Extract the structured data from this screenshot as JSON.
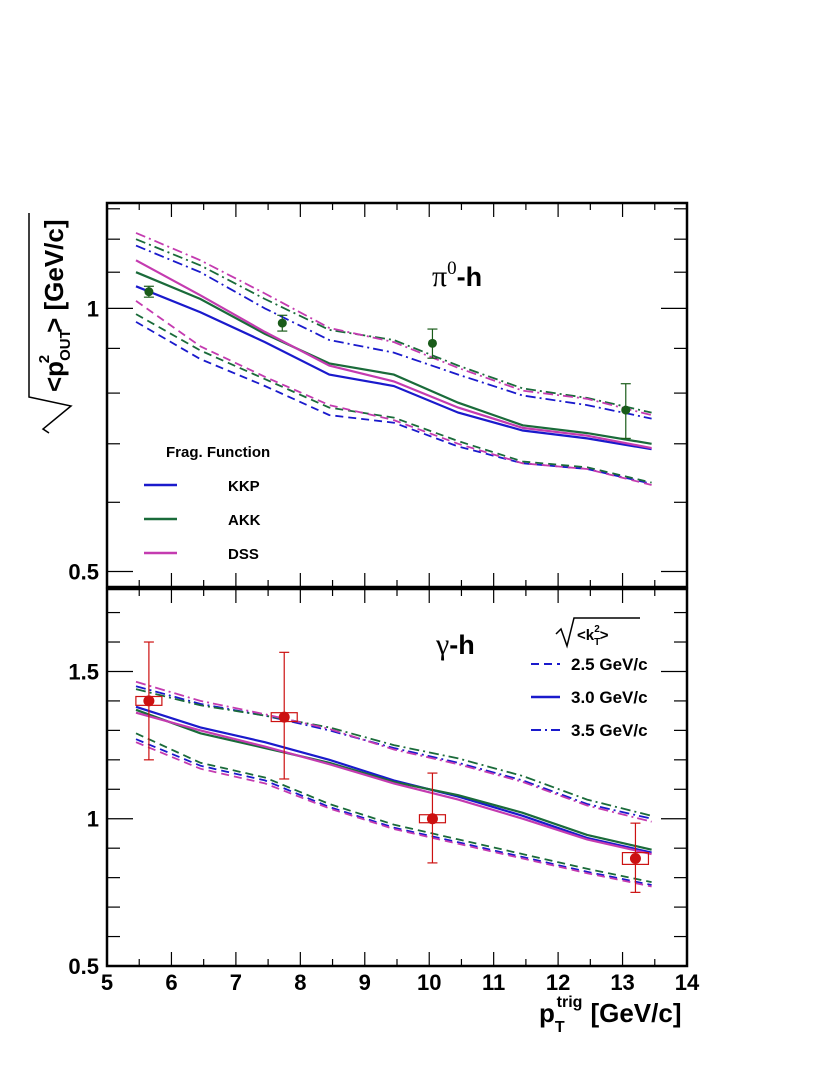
{
  "colors": {
    "KKP": "#1a1acc",
    "AKK": "#1a6b3a",
    "DSS": "#c43bb0",
    "data_top": "#1a5c1a",
    "data_bottom": "#cc1111"
  },
  "x_axis": {
    "title_main": "p",
    "title_sub": "T",
    "title_sup": "trig",
    "title_unit": "[GeV/c]",
    "ticks": [
      "5",
      "6",
      "7",
      "8",
      "9",
      "10",
      "11",
      "12",
      "13",
      "14"
    ]
  },
  "y_axis": {
    "title_inner": "<p",
    "title_sup": "2",
    "title_sub": "OUT",
    "title_end": "> [GeV/c]"
  },
  "legend_ff": {
    "title": "Frag. Function",
    "items": [
      "KKP",
      "AKK",
      "DSS"
    ]
  },
  "legend_kt": {
    "title_base": "<k",
    "title_sub": "T",
    "title_sup": "2",
    "title_end": ">",
    "items": [
      "2.5 GeV/c",
      "3.0 GeV/c",
      "3.5 GeV/c"
    ]
  },
  "chart_data": [
    {
      "type": "line",
      "panel": "top",
      "label_main": "π",
      "label_sup": "0",
      "label_rest": "-h",
      "xlim": [
        5,
        14
      ],
      "ylim": [
        0.48,
        1.32
      ],
      "yscale": "log",
      "ytick_labels": [
        {
          "value": 0.5,
          "label": "0.5"
        },
        {
          "value": 1,
          "label": "1"
        }
      ],
      "x": [
        5.45,
        6.45,
        7.45,
        8.45,
        9.45,
        10.45,
        11.45,
        12.45,
        13.45
      ],
      "series": [
        {
          "name": "KKP",
          "kt": "2.5",
          "values": [
            0.965,
            0.875,
            0.815,
            0.755,
            0.74,
            0.695,
            0.665,
            0.655,
            0.63
          ]
        },
        {
          "name": "AKK",
          "kt": "2.5",
          "values": [
            0.985,
            0.895,
            0.83,
            0.77,
            0.75,
            0.705,
            0.668,
            0.658,
            0.632
          ]
        },
        {
          "name": "DSS",
          "kt": "2.5",
          "values": [
            1.02,
            0.905,
            0.835,
            0.775,
            0.745,
            0.7,
            0.665,
            0.655,
            0.628
          ]
        },
        {
          "name": "KKP",
          "kt": "3.0",
          "values": [
            1.06,
            0.99,
            0.915,
            0.84,
            0.815,
            0.76,
            0.725,
            0.71,
            0.69
          ]
        },
        {
          "name": "AKK",
          "kt": "3.0",
          "values": [
            1.1,
            1.025,
            0.935,
            0.865,
            0.84,
            0.78,
            0.735,
            0.72,
            0.7
          ]
        },
        {
          "name": "DSS",
          "kt": "3.0",
          "values": [
            1.135,
            1.035,
            0.94,
            0.86,
            0.825,
            0.77,
            0.73,
            0.715,
            0.692
          ]
        },
        {
          "name": "KKP",
          "kt": "3.5",
          "values": [
            1.18,
            1.1,
            1.0,
            0.92,
            0.89,
            0.84,
            0.795,
            0.775,
            0.748
          ]
        },
        {
          "name": "AKK",
          "kt": "3.5",
          "values": [
            1.2,
            1.12,
            1.025,
            0.945,
            0.92,
            0.86,
            0.81,
            0.79,
            0.76
          ]
        },
        {
          "name": "DSS",
          "kt": "3.5",
          "values": [
            1.22,
            1.135,
            1.04,
            0.95,
            0.915,
            0.855,
            0.805,
            0.788,
            0.755
          ]
        }
      ],
      "points": [
        {
          "x": 5.65,
          "y": 1.045,
          "err": 0.015
        },
        {
          "x": 7.72,
          "y": 0.962,
          "err": 0.02
        },
        {
          "x": 10.05,
          "y": 0.912,
          "err": 0.035
        },
        {
          "x": 13.05,
          "y": 0.765,
          "err": 0.055
        }
      ]
    },
    {
      "type": "line",
      "panel": "bottom",
      "label_main": "γ",
      "label_rest": "-h",
      "xlim": [
        5,
        14
      ],
      "ylim": [
        0.5,
        1.78
      ],
      "yscale": "linear",
      "ytick_labels": [
        {
          "value": 0.5,
          "label": "0.5"
        },
        {
          "value": 1,
          "label": "1"
        },
        {
          "value": 1.5,
          "label": "1.5"
        }
      ],
      "x": [
        5.45,
        6.45,
        7.45,
        8.45,
        9.45,
        10.45,
        11.45,
        12.45,
        13.45
      ],
      "series": [
        {
          "name": "KKP",
          "kt": "2.5",
          "values": [
            1.27,
            1.18,
            1.13,
            1.04,
            0.97,
            0.92,
            0.87,
            0.82,
            0.775
          ]
        },
        {
          "name": "AKK",
          "kt": "2.5",
          "values": [
            1.29,
            1.19,
            1.14,
            1.05,
            0.98,
            0.93,
            0.88,
            0.83,
            0.785
          ]
        },
        {
          "name": "DSS",
          "kt": "2.5",
          "values": [
            1.26,
            1.17,
            1.12,
            1.035,
            0.965,
            0.915,
            0.865,
            0.815,
            0.77
          ]
        },
        {
          "name": "KKP",
          "kt": "3.0",
          "values": [
            1.38,
            1.31,
            1.26,
            1.2,
            1.13,
            1.075,
            1.01,
            0.935,
            0.885
          ]
        },
        {
          "name": "AKK",
          "kt": "3.0",
          "values": [
            1.37,
            1.29,
            1.24,
            1.19,
            1.125,
            1.08,
            1.02,
            0.945,
            0.895
          ]
        },
        {
          "name": "DSS",
          "kt": "3.0",
          "values": [
            1.36,
            1.3,
            1.245,
            1.185,
            1.12,
            1.065,
            1.0,
            0.93,
            0.88
          ]
        },
        {
          "name": "KKP",
          "kt": "3.5",
          "values": [
            1.45,
            1.39,
            1.35,
            1.3,
            1.24,
            1.19,
            1.13,
            1.05,
            1.0
          ]
        },
        {
          "name": "AKK",
          "kt": "3.5",
          "values": [
            1.44,
            1.385,
            1.35,
            1.31,
            1.25,
            1.205,
            1.145,
            1.065,
            1.01
          ]
        },
        {
          "name": "DSS",
          "kt": "3.5",
          "values": [
            1.465,
            1.4,
            1.355,
            1.305,
            1.235,
            1.185,
            1.125,
            1.045,
            0.99
          ]
        }
      ],
      "points": [
        {
          "x": 5.65,
          "y": 1.4,
          "err_up": 0.2,
          "err_down": 0.2,
          "sys": 0.015
        },
        {
          "x": 7.75,
          "y": 1.345,
          "err_up": 0.22,
          "err_down": 0.21,
          "sys": 0.015
        },
        {
          "x": 10.05,
          "y": 1.0,
          "err_up": 0.155,
          "err_down": 0.15,
          "sys": 0.01
        },
        {
          "x": 13.2,
          "y": 0.865,
          "err_up": 0.12,
          "err_down": 0.115,
          "sys": 0.02
        }
      ]
    }
  ]
}
